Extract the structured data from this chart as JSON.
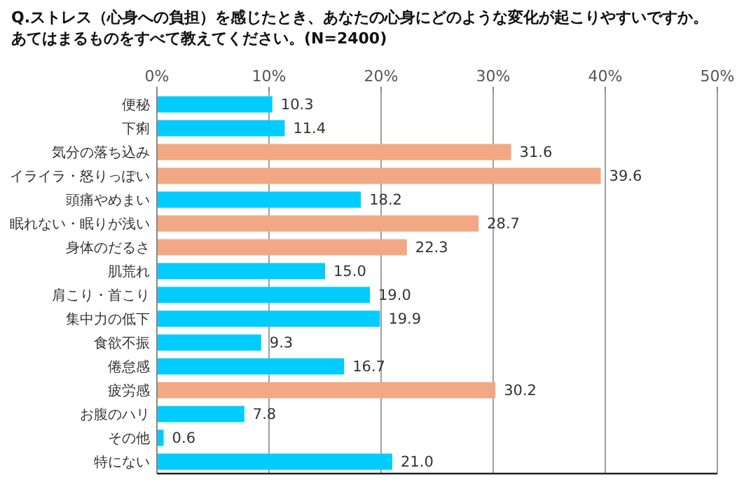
{
  "chart_data": {
    "type": "bar",
    "orientation": "horizontal",
    "title": "Q.ストレス（心身への負担）を感じたとき、あなたの心身にどのような変化が起こりやすいですか。",
    "subtitle": "あてはまるものをすべて教えてください。(N=2400)",
    "categories": [
      "便秘",
      "下痢",
      "気分の落ち込み",
      "イライラ・怒りっぽい",
      "頭痛やめまい",
      "眠れない・眠りが浅い",
      "身体のだるさ",
      "肌荒れ",
      "肩こり・首こり",
      "集中力の低下",
      "食欲不振",
      "倦怠感",
      "疲労感",
      "お腹のハリ",
      "その他",
      "特にない"
    ],
    "values": [
      10.3,
      11.4,
      31.6,
      39.6,
      18.2,
      28.7,
      22.3,
      15.0,
      19.0,
      19.9,
      9.3,
      16.7,
      30.2,
      7.8,
      0.6,
      21.0
    ],
    "value_labels": [
      "10.3",
      "11.4",
      "31.6",
      "39.6",
      "18.2",
      "28.7",
      "22.3",
      "15.0",
      "19.0",
      "19.9",
      "9.3",
      "16.7",
      "30.2",
      "7.8",
      "0.6",
      "21.0"
    ],
    "colors": [
      "#00ccff",
      "#00ccff",
      "#f2a884",
      "#f2a884",
      "#00ccff",
      "#f2a884",
      "#f2a884",
      "#00ccff",
      "#00ccff",
      "#00ccff",
      "#00ccff",
      "#00ccff",
      "#f2a884",
      "#00ccff",
      "#00ccff",
      "#00ccff"
    ],
    "xlim": [
      0,
      50
    ],
    "xticks": [
      {
        "value": 0,
        "label": "0%"
      },
      {
        "value": 10,
        "label": "10%"
      },
      {
        "value": 20,
        "label": "20%"
      },
      {
        "value": 30,
        "label": "30%"
      },
      {
        "value": 40,
        "label": "40%"
      },
      {
        "value": 50,
        "label": "50%"
      }
    ],
    "grid": "x"
  }
}
